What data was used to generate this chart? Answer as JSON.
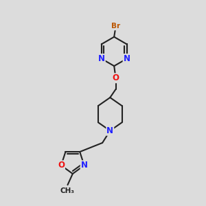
{
  "bg_color": "#dcdcdc",
  "bond_color": "#222222",
  "bond_width": 1.5,
  "atom_colors": {
    "N": "#2020ff",
    "O": "#ee1111",
    "Br": "#bb5500",
    "C": "#222222"
  },
  "font_size_atom": 8.5,
  "font_size_br": 7.5,
  "font_size_me": 7.5
}
